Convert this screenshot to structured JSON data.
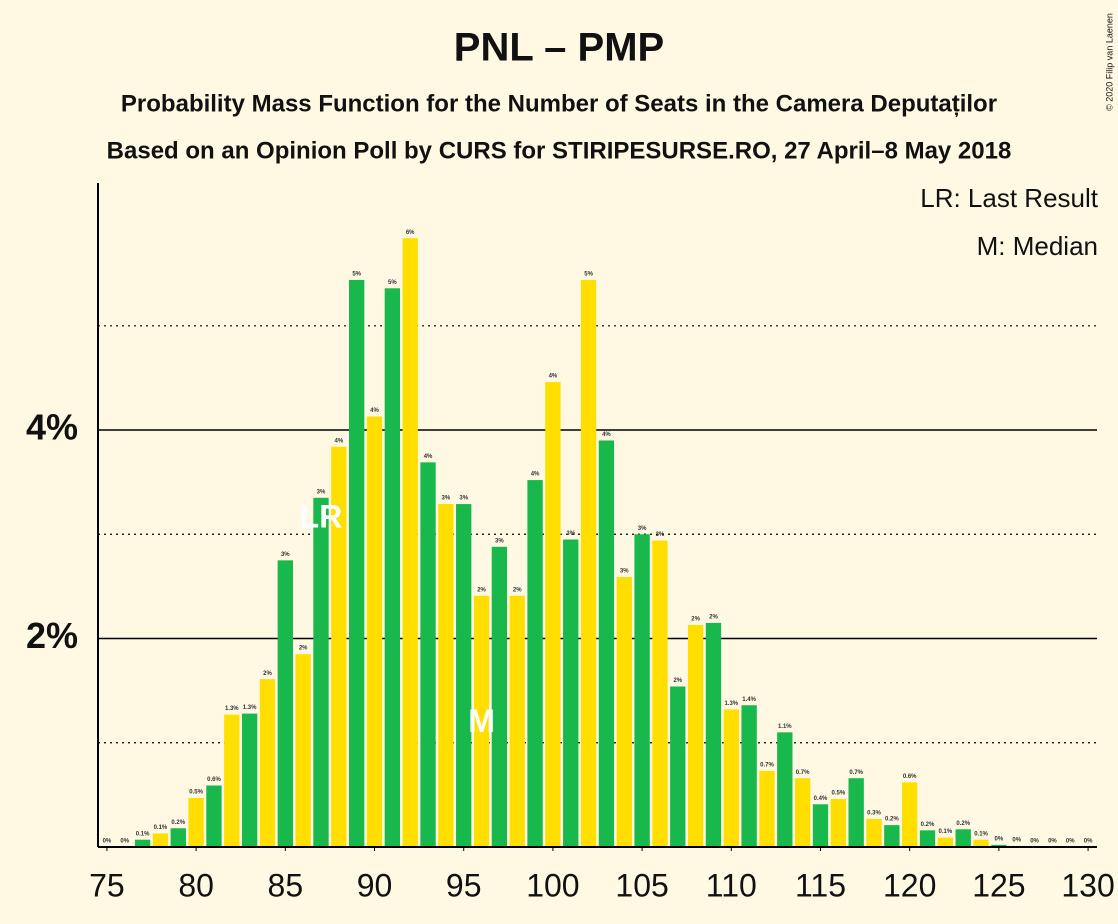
{
  "chart_data": {
    "type": "bar",
    "title": "PNL – PMP",
    "subtitle": "Probability Mass Function for the Number of Seats in the Camera Deputaților",
    "subtitle2": "Based on an Opinion Poll by CURS for STIRIPESURSE.RO, 27 April–8 May 2018",
    "copyright": "© 2020 Filip van Laenen",
    "legend": [
      "LR: Last Result",
      "M: Median"
    ],
    "x": [
      75,
      76,
      77,
      78,
      79,
      80,
      81,
      82,
      83,
      84,
      85,
      86,
      87,
      88,
      89,
      90,
      91,
      92,
      93,
      94,
      95,
      96,
      97,
      98,
      99,
      100,
      101,
      102,
      103,
      104,
      105,
      106,
      107,
      108,
      109,
      110,
      111,
      112,
      113,
      114,
      115,
      116,
      117,
      118,
      119,
      120,
      121,
      122,
      123,
      124,
      125,
      126,
      127,
      128,
      129,
      130
    ],
    "values": [
      0,
      0,
      0.07,
      0.13,
      0.18,
      0.47,
      0.59,
      1.27,
      1.28,
      1.61,
      2.75,
      1.85,
      3.35,
      3.84,
      5.44,
      4.13,
      5.36,
      5.84,
      3.69,
      3.29,
      3.29,
      2.41,
      2.88,
      2.41,
      3.52,
      4.46,
      2.95,
      5.44,
      3.9,
      2.59,
      3.0,
      2.94,
      1.54,
      2.13,
      2.15,
      1.32,
      1.36,
      0.73,
      1.1,
      0.66,
      0.41,
      0.46,
      0.66,
      0.27,
      0.21,
      0.62,
      0.16,
      0.09,
      0.17,
      0.07,
      0.02,
      0.01,
      0,
      0,
      0,
      0
    ],
    "value_labels": [
      "0%",
      "0%",
      "0.1%",
      "0.1%",
      "0.2%",
      "0.5%",
      "0.6%",
      "1.3%",
      "1.3%",
      "2%",
      "3%",
      "2%",
      "3%",
      "4%",
      "5%",
      "4%",
      "5%",
      "6%",
      "4%",
      "3%",
      "3%",
      "2%",
      "3%",
      "2%",
      "4%",
      "4%",
      "3%",
      "5%",
      "4%",
      "3%",
      "3%",
      "3%",
      "2%",
      "2%",
      "2%",
      "1.3%",
      "1.4%",
      "0.7%",
      "1.1%",
      "0.7%",
      "0.4%",
      "0.5%",
      "0.7%",
      "0.3%",
      "0.2%",
      "0.6%",
      "0.2%",
      "0.1%",
      "0.2%",
      "0.1%",
      "0%",
      "0%",
      "0%",
      "0%",
      "0%",
      "0%"
    ],
    "colors": {
      "odd": "#19b84c",
      "even": "#ffde00"
    },
    "annotations": [
      {
        "text": "LR",
        "x": 87
      },
      {
        "text": "M",
        "x": 96
      }
    ],
    "xlim": [
      74.5,
      130.5
    ],
    "xticks": [
      75,
      80,
      85,
      90,
      95,
      100,
      105,
      110,
      115,
      120,
      125,
      130
    ],
    "ylim": [
      0,
      6.37
    ],
    "yticks": [
      {
        "value": 2,
        "label": "2%"
      },
      {
        "value": 4,
        "label": "4%"
      }
    ],
    "minor_yticks": [
      1,
      3,
      5
    ],
    "grid": true
  }
}
